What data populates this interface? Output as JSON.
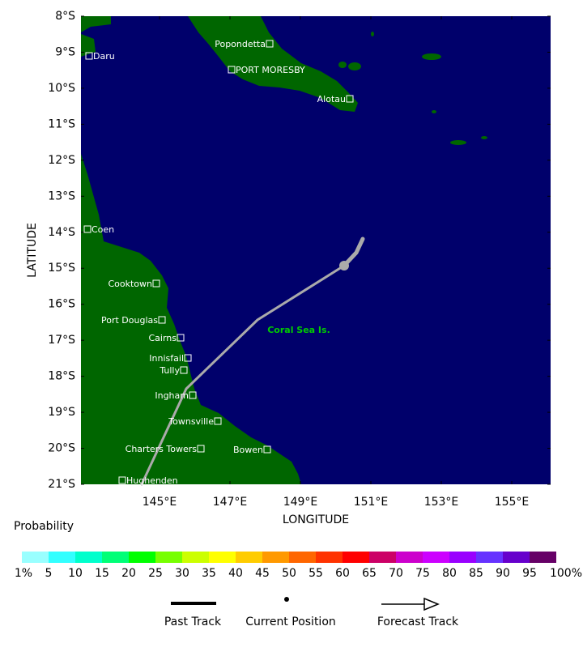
{
  "map": {
    "y_axis_label": "LATITUDE",
    "x_axis_label": "LONGITUDE",
    "lat_ticks": [
      "8°S",
      "9°S",
      "10°S",
      "11°S",
      "12°S",
      "13°S",
      "14°S",
      "15°S",
      "16°S",
      "17°S",
      "18°S",
      "19°S",
      "20°S",
      "21°S"
    ],
    "lon_ticks": [
      "145°E",
      "147°E",
      "149°E",
      "151°E",
      "153°E",
      "155°E"
    ],
    "places": [
      "Popondetta",
      "PORT MORESBY",
      "Alotau",
      "Daru",
      "Coen",
      "Cooktown",
      "Port Douglas",
      "Cairns",
      "Innisfail",
      "Tully",
      "Ingham",
      "Townsville",
      "Charters Towers",
      "Bowen",
      "Hughenden"
    ],
    "region_label": "Coral Sea Is."
  },
  "legend": {
    "title": "Probability",
    "colors": [
      "#99ffff",
      "#33ffff",
      "#00ffcc",
      "#00ff77",
      "#00ff00",
      "#77ff00",
      "#ccff00",
      "#ffff00",
      "#ffcc00",
      "#ff9900",
      "#ff6600",
      "#ff3300",
      "#ff0000",
      "#cc0066",
      "#cc00cc",
      "#cc00ff",
      "#9900ff",
      "#6633ff",
      "#6600cc",
      "#660066"
    ],
    "labels": [
      "1%",
      "5",
      "10",
      "15",
      "20",
      "25",
      "30",
      "35",
      "40",
      "45",
      "50",
      "55",
      "60",
      "65",
      "70",
      "75",
      "80",
      "85",
      "90",
      "95",
      "100%"
    ],
    "track_keys": [
      "Past Track",
      "Current Position",
      "Forecast Track"
    ]
  }
}
